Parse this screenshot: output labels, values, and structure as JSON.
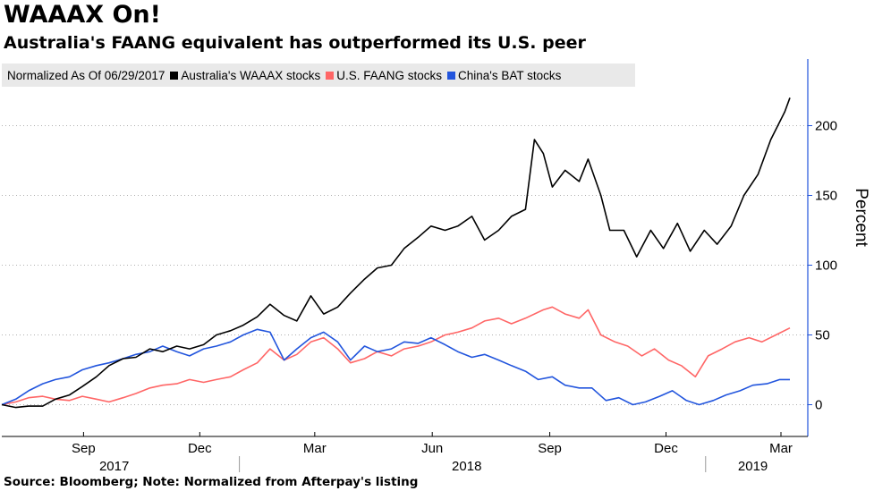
{
  "header": {
    "title": "WAAAX On!",
    "subtitle": "Australia's FAANG equivalent has outperformed its U.S. peer"
  },
  "footer": {
    "source": "Source: Bloomberg; Note: Normalized from Afterpay's listing"
  },
  "legend": {
    "note": "Normalized As Of 06/29/2017"
  },
  "chart_data": {
    "type": "line",
    "title": "WAAAX On!",
    "subtitle": "Australia's FAANG equivalent has outperformed its U.S. peer",
    "ylabel": "Percent",
    "ylim": [
      -20,
      250
    ],
    "yticks": [
      0,
      50,
      100,
      150,
      200
    ],
    "x_range": [
      "2017-06-29",
      "2019-03-08"
    ],
    "x_ticks": [
      {
        "label": "Sep",
        "date": "2017-09-01"
      },
      {
        "label": "Dec",
        "date": "2017-12-01"
      },
      {
        "label": "Mar",
        "date": "2018-03-01"
      },
      {
        "label": "Jun",
        "date": "2018-06-01"
      },
      {
        "label": "Sep",
        "date": "2018-09-01"
      },
      {
        "label": "Dec",
        "date": "2018-12-01"
      },
      {
        "label": "Mar",
        "date": "2019-03-01"
      }
    ],
    "year_labels": [
      {
        "label": "2017",
        "date": "2017-09-25"
      },
      {
        "label": "2018",
        "date": "2018-06-28"
      },
      {
        "label": "2019",
        "date": "2019-02-07"
      }
    ],
    "year_dividers": [
      "2018-01-01",
      "2019-01-01"
    ],
    "grid": "horizontal dotted",
    "legend_position": "top-left",
    "series": [
      {
        "name": "Australia's WAAAX stocks",
        "color": "#000000",
        "points": [
          [
            "2017-06-29",
            0
          ],
          [
            "2017-07-10",
            -2
          ],
          [
            "2017-07-20",
            -1
          ],
          [
            "2017-07-31",
            -1
          ],
          [
            "2017-08-10",
            4
          ],
          [
            "2017-08-21",
            7
          ],
          [
            "2017-08-31",
            13
          ],
          [
            "2017-09-11",
            20
          ],
          [
            "2017-09-21",
            28
          ],
          [
            "2017-10-02",
            33
          ],
          [
            "2017-10-12",
            34
          ],
          [
            "2017-10-23",
            40
          ],
          [
            "2017-11-02",
            38
          ],
          [
            "2017-11-13",
            42
          ],
          [
            "2017-11-23",
            40
          ],
          [
            "2017-12-04",
            43
          ],
          [
            "2017-12-14",
            50
          ],
          [
            "2017-12-25",
            53
          ],
          [
            "2018-01-04",
            57
          ],
          [
            "2018-01-15",
            63
          ],
          [
            "2018-01-25",
            72
          ],
          [
            "2018-02-05",
            64
          ],
          [
            "2018-02-15",
            60
          ],
          [
            "2018-02-26",
            78
          ],
          [
            "2018-03-08",
            65
          ],
          [
            "2018-03-19",
            70
          ],
          [
            "2018-03-29",
            80
          ],
          [
            "2018-04-09",
            90
          ],
          [
            "2018-04-19",
            98
          ],
          [
            "2018-04-30",
            100
          ],
          [
            "2018-05-10",
            112
          ],
          [
            "2018-05-21",
            120
          ],
          [
            "2018-05-31",
            128
          ],
          [
            "2018-06-11",
            125
          ],
          [
            "2018-06-21",
            128
          ],
          [
            "2018-07-02",
            135
          ],
          [
            "2018-07-12",
            118
          ],
          [
            "2018-07-23",
            125
          ],
          [
            "2018-08-02",
            135
          ],
          [
            "2018-08-13",
            140
          ],
          [
            "2018-08-20",
            190
          ],
          [
            "2018-08-27",
            180
          ],
          [
            "2018-09-03",
            156
          ],
          [
            "2018-09-13",
            168
          ],
          [
            "2018-09-24",
            160
          ],
          [
            "2018-10-01",
            176
          ],
          [
            "2018-10-11",
            150
          ],
          [
            "2018-10-18",
            125
          ],
          [
            "2018-10-29",
            125
          ],
          [
            "2018-11-08",
            106
          ],
          [
            "2018-11-19",
            125
          ],
          [
            "2018-11-29",
            112
          ],
          [
            "2018-12-10",
            130
          ],
          [
            "2018-12-20",
            110
          ],
          [
            "2018-12-31",
            125
          ],
          [
            "2019-01-10",
            115
          ],
          [
            "2019-01-21",
            128
          ],
          [
            "2019-01-31",
            150
          ],
          [
            "2019-02-11",
            165
          ],
          [
            "2019-02-21",
            190
          ],
          [
            "2019-03-04",
            210
          ],
          [
            "2019-03-08",
            220
          ]
        ]
      },
      {
        "name": "U.S. FAANG stocks",
        "color": "#ff6666",
        "points": [
          [
            "2017-06-29",
            0
          ],
          [
            "2017-07-10",
            2
          ],
          [
            "2017-07-20",
            5
          ],
          [
            "2017-07-31",
            6
          ],
          [
            "2017-08-10",
            4
          ],
          [
            "2017-08-21",
            3
          ],
          [
            "2017-08-31",
            6
          ],
          [
            "2017-09-11",
            4
          ],
          [
            "2017-09-21",
            2
          ],
          [
            "2017-10-02",
            5
          ],
          [
            "2017-10-12",
            8
          ],
          [
            "2017-10-23",
            12
          ],
          [
            "2017-11-02",
            14
          ],
          [
            "2017-11-13",
            15
          ],
          [
            "2017-11-23",
            18
          ],
          [
            "2017-12-04",
            16
          ],
          [
            "2017-12-14",
            18
          ],
          [
            "2017-12-25",
            20
          ],
          [
            "2018-01-04",
            25
          ],
          [
            "2018-01-15",
            30
          ],
          [
            "2018-01-25",
            40
          ],
          [
            "2018-02-05",
            32
          ],
          [
            "2018-02-15",
            36
          ],
          [
            "2018-02-26",
            45
          ],
          [
            "2018-03-08",
            48
          ],
          [
            "2018-03-19",
            40
          ],
          [
            "2018-03-29",
            30
          ],
          [
            "2018-04-09",
            33
          ],
          [
            "2018-04-19",
            38
          ],
          [
            "2018-04-30",
            35
          ],
          [
            "2018-05-10",
            40
          ],
          [
            "2018-05-21",
            42
          ],
          [
            "2018-05-31",
            45
          ],
          [
            "2018-06-11",
            50
          ],
          [
            "2018-06-21",
            52
          ],
          [
            "2018-07-02",
            55
          ],
          [
            "2018-07-12",
            60
          ],
          [
            "2018-07-23",
            62
          ],
          [
            "2018-08-02",
            58
          ],
          [
            "2018-08-13",
            62
          ],
          [
            "2018-08-27",
            68
          ],
          [
            "2018-09-03",
            70
          ],
          [
            "2018-09-13",
            65
          ],
          [
            "2018-09-24",
            62
          ],
          [
            "2018-10-01",
            68
          ],
          [
            "2018-10-11",
            50
          ],
          [
            "2018-10-22",
            45
          ],
          [
            "2018-11-01",
            42
          ],
          [
            "2018-11-12",
            35
          ],
          [
            "2018-11-22",
            40
          ],
          [
            "2018-12-03",
            32
          ],
          [
            "2018-12-13",
            28
          ],
          [
            "2018-12-24",
            20
          ],
          [
            "2019-01-03",
            35
          ],
          [
            "2019-01-14",
            40
          ],
          [
            "2019-01-24",
            45
          ],
          [
            "2019-02-04",
            48
          ],
          [
            "2019-02-14",
            45
          ],
          [
            "2019-02-25",
            50
          ],
          [
            "2019-03-08",
            55
          ]
        ]
      },
      {
        "name": "China's BAT stocks",
        "color": "#2255dd",
        "points": [
          [
            "2017-06-29",
            0
          ],
          [
            "2017-07-10",
            4
          ],
          [
            "2017-07-20",
            10
          ],
          [
            "2017-07-31",
            15
          ],
          [
            "2017-08-10",
            18
          ],
          [
            "2017-08-21",
            20
          ],
          [
            "2017-08-31",
            25
          ],
          [
            "2017-09-11",
            28
          ],
          [
            "2017-09-21",
            30
          ],
          [
            "2017-10-02",
            33
          ],
          [
            "2017-10-12",
            36
          ],
          [
            "2017-10-23",
            38
          ],
          [
            "2017-11-02",
            42
          ],
          [
            "2017-11-13",
            38
          ],
          [
            "2017-11-23",
            35
          ],
          [
            "2017-12-04",
            40
          ],
          [
            "2017-12-14",
            42
          ],
          [
            "2017-12-25",
            45
          ],
          [
            "2018-01-04",
            50
          ],
          [
            "2018-01-15",
            54
          ],
          [
            "2018-01-25",
            52
          ],
          [
            "2018-02-05",
            32
          ],
          [
            "2018-02-15",
            40
          ],
          [
            "2018-02-26",
            48
          ],
          [
            "2018-03-08",
            52
          ],
          [
            "2018-03-19",
            45
          ],
          [
            "2018-03-29",
            32
          ],
          [
            "2018-04-09",
            42
          ],
          [
            "2018-04-19",
            38
          ],
          [
            "2018-04-30",
            40
          ],
          [
            "2018-05-10",
            45
          ],
          [
            "2018-05-21",
            44
          ],
          [
            "2018-05-31",
            48
          ],
          [
            "2018-06-11",
            43
          ],
          [
            "2018-06-21",
            38
          ],
          [
            "2018-07-02",
            34
          ],
          [
            "2018-07-12",
            36
          ],
          [
            "2018-07-23",
            32
          ],
          [
            "2018-08-02",
            28
          ],
          [
            "2018-08-13",
            24
          ],
          [
            "2018-08-23",
            18
          ],
          [
            "2018-09-03",
            20
          ],
          [
            "2018-09-13",
            14
          ],
          [
            "2018-09-24",
            12
          ],
          [
            "2018-10-04",
            12
          ],
          [
            "2018-10-15",
            3
          ],
          [
            "2018-10-25",
            5
          ],
          [
            "2018-11-05",
            0
          ],
          [
            "2018-11-15",
            2
          ],
          [
            "2018-11-26",
            6
          ],
          [
            "2018-12-06",
            10
          ],
          [
            "2018-12-17",
            3
          ],
          [
            "2018-12-27",
            0
          ],
          [
            "2019-01-07",
            3
          ],
          [
            "2019-01-17",
            7
          ],
          [
            "2019-01-28",
            10
          ],
          [
            "2019-02-07",
            14
          ],
          [
            "2019-02-18",
            15
          ],
          [
            "2019-02-28",
            18
          ],
          [
            "2019-03-08",
            18
          ]
        ]
      }
    ]
  }
}
